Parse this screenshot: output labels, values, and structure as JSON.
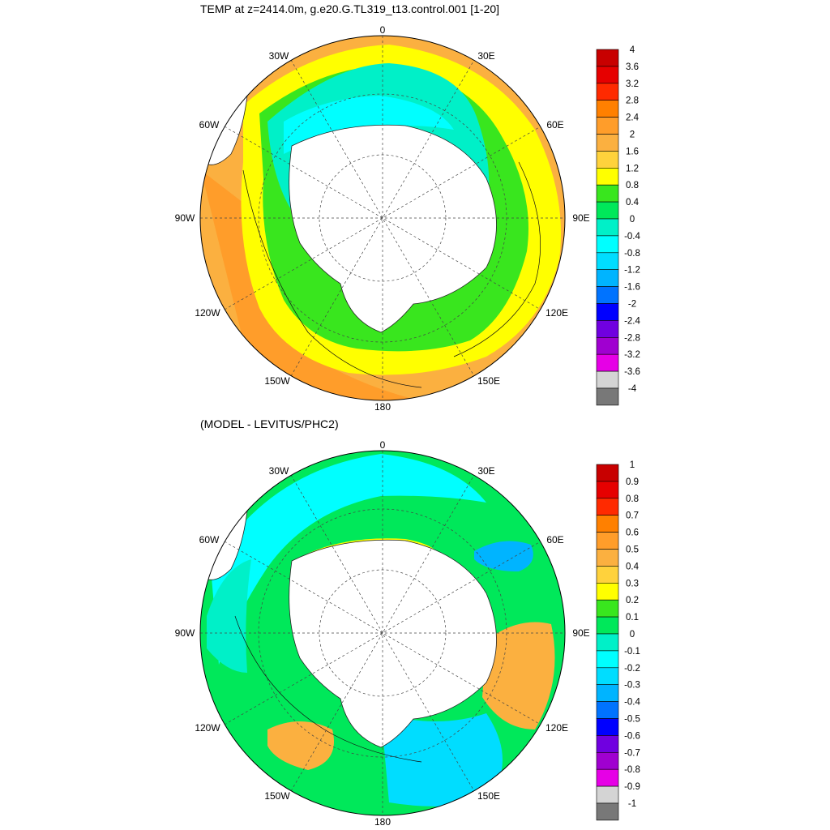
{
  "panels": [
    {
      "title": "TEMP at z=2414.0m, g.e20.G.TL319_t13.control.001 [1-20]",
      "longitude_labels": [
        "0",
        "30E",
        "60E",
        "90E",
        "120E",
        "150E",
        "180",
        "150W",
        "120W",
        "90W",
        "60W",
        "30W"
      ],
      "colorbar": {
        "labels": [
          "4",
          "3.6",
          "3.2",
          "2.8",
          "2.4",
          "2",
          "1.6",
          "1.2",
          "0.8",
          "0.4",
          "0",
          "-0.4",
          "-0.8",
          "-1.2",
          "-1.6",
          "-2",
          "-2.4",
          "-2.8",
          "-3.2",
          "-3.6",
          "-4"
        ],
        "colors": [
          "#c80000",
          "#e60000",
          "#ff2a00",
          "#ff8000",
          "#ff9d2a",
          "#fbb040",
          "#ffd23c",
          "#ffff00",
          "#39e61e",
          "#00e85a",
          "#00f0c8",
          "#00ffff",
          "#00ddff",
          "#00b4ff",
          "#0073ff",
          "#0000ff",
          "#7000e0",
          "#a000d0",
          "#e600e6",
          "#d4d4d4",
          "#787878"
        ]
      }
    },
    {
      "title": "(MODEL - LEVITUS/PHC2)",
      "longitude_labels": [
        "0",
        "30E",
        "60E",
        "90E",
        "120E",
        "150E",
        "180",
        "150W",
        "120W",
        "90W",
        "60W",
        "30W"
      ],
      "colorbar": {
        "labels": [
          "1",
          "0.9",
          "0.8",
          "0.7",
          "0.6",
          "0.5",
          "0.4",
          "0.3",
          "0.2",
          "0.1",
          "0",
          "-0.1",
          "-0.2",
          "-0.3",
          "-0.4",
          "-0.5",
          "-0.6",
          "-0.7",
          "-0.8",
          "-0.9",
          "-1"
        ],
        "colors": [
          "#c80000",
          "#e60000",
          "#ff2a00",
          "#ff8000",
          "#ff9d2a",
          "#fbb040",
          "#ffd23c",
          "#ffff00",
          "#39e61e",
          "#00e85a",
          "#00f0c8",
          "#00ffff",
          "#00ddff",
          "#00b4ff",
          "#0073ff",
          "#0000ff",
          "#7000e0",
          "#a000d0",
          "#e600e6",
          "#d4d4d4",
          "#787878"
        ]
      }
    }
  ]
}
